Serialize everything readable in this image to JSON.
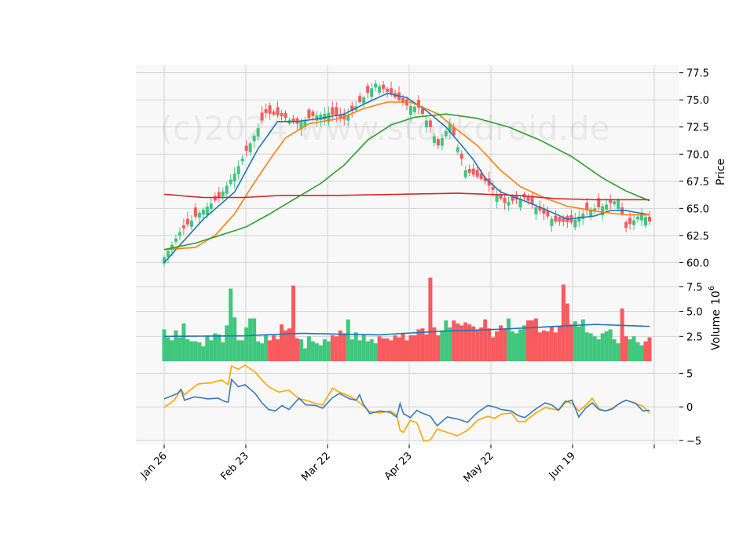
{
  "watermark": "(c)2024 www.stockdroid.de",
  "colors": {
    "panel_bg": "#f8f8f8",
    "grid": "#d4d4d4",
    "up": "#3fc77d",
    "down": "#f85a5e",
    "ma_fast": "#1f77b4",
    "ma_mid": "#ff7f0e",
    "ma_slow": "#2ca02c",
    "ma_long": "#d62728",
    "volume_ma": "#1f77b4",
    "macd": "#3b7ab8",
    "signal": "#ffa500"
  },
  "chart_data": {
    "type": "candlestick",
    "x_tick_labels": [
      "Jan 26",
      "Feb 23",
      "Mar 22",
      "Apr 23",
      "May 22",
      "Jun 19"
    ],
    "price_panel": {
      "ylabel": "Price",
      "ylim": [
        58.8,
        78.2
      ],
      "yticks": [
        60.0,
        62.5,
        65.0,
        67.5,
        70.0,
        72.5,
        75.0,
        77.5
      ],
      "ytick_labels": [
        "60.0",
        "62.5",
        "65.0",
        "67.5",
        "70.0",
        "72.5",
        "75.0",
        "77.5"
      ],
      "close_anchors": [
        [
          0,
          60.5
        ],
        [
          4,
          62.8
        ],
        [
          9,
          64.6
        ],
        [
          14,
          66.0
        ],
        [
          18,
          68.2
        ],
        [
          22,
          71.0
        ],
        [
          26,
          73.8
        ],
        [
          30,
          73.5
        ],
        [
          34,
          72.8
        ],
        [
          38,
          73.5
        ],
        [
          42,
          73.8
        ],
        [
          46,
          73.2
        ],
        [
          50,
          74.8
        ],
        [
          54,
          76.5
        ],
        [
          58,
          75.5
        ],
        [
          62,
          74.5
        ],
        [
          65,
          74.3
        ],
        [
          68,
          72.5
        ],
        [
          70,
          70.8
        ],
        [
          73,
          72.8
        ],
        [
          77,
          68.5
        ],
        [
          82,
          67.5
        ],
        [
          87,
          65.5
        ],
        [
          92,
          66.0
        ],
        [
          97,
          64.5
        ],
        [
          100,
          63.8
        ],
        [
          104,
          63.7
        ],
        [
          108,
          64.8
        ],
        [
          112,
          65.2
        ],
        [
          116,
          65.8
        ],
        [
          118,
          63.2
        ],
        [
          122,
          64.6
        ],
        [
          124,
          63.8
        ]
      ],
      "moving_averages": [
        {
          "key": "ma_fast",
          "values": [
            [
              0,
              60.0
            ],
            [
              10,
              64.0
            ],
            [
              18,
              66.5
            ],
            [
              24,
              70.5
            ],
            [
              29,
              73.0
            ],
            [
              34,
              73.0
            ],
            [
              40,
              73.3
            ],
            [
              46,
              73.7
            ],
            [
              51,
              74.6
            ],
            [
              57,
              75.6
            ],
            [
              62,
              75.2
            ],
            [
              67,
              74.0
            ],
            [
              72,
              72.5
            ],
            [
              76,
              70.8
            ],
            [
              79,
              69.5
            ],
            [
              82,
              67.8
            ],
            [
              86,
              66.5
            ],
            [
              92,
              65.7
            ],
            [
              98,
              64.8
            ],
            [
              103,
              64.0
            ],
            [
              110,
              64.3
            ],
            [
              114,
              64.8
            ],
            [
              118,
              64.8
            ],
            [
              124,
              64.4
            ]
          ]
        },
        {
          "key": "ma_mid",
          "values": [
            [
              0,
              61.2
            ],
            [
              8,
              61.4
            ],
            [
              13,
              62.5
            ],
            [
              18,
              64.5
            ],
            [
              22,
              66.8
            ],
            [
              27,
              69.5
            ],
            [
              31,
              71.5
            ],
            [
              37,
              72.8
            ],
            [
              45,
              73.3
            ],
            [
              51,
              74.2
            ],
            [
              57,
              74.8
            ],
            [
              63,
              74.8
            ],
            [
              70,
              73.7
            ],
            [
              75,
              72.2
            ],
            [
              80,
              70.8
            ],
            [
              86,
              68.5
            ],
            [
              91,
              67.0
            ],
            [
              97,
              66.0
            ],
            [
              103,
              65.2
            ],
            [
              111,
              64.7
            ],
            [
              118,
              64.4
            ],
            [
              124,
              64.4
            ]
          ]
        },
        {
          "key": "ma_slow",
          "values": [
            [
              0,
              61.2
            ],
            [
              8,
              61.8
            ],
            [
              15,
              62.6
            ],
            [
              21,
              63.3
            ],
            [
              27,
              64.5
            ],
            [
              33,
              65.8
            ],
            [
              40,
              67.3
            ],
            [
              46,
              69.0
            ],
            [
              52,
              71.3
            ],
            [
              58,
              72.7
            ],
            [
              64,
              73.4
            ],
            [
              72,
              73.7
            ],
            [
              80,
              73.3
            ],
            [
              88,
              72.5
            ],
            [
              96,
              71.3
            ],
            [
              104,
              69.8
            ],
            [
              112,
              67.8
            ],
            [
              118,
              66.6
            ],
            [
              124,
              65.7
            ]
          ]
        },
        {
          "key": "ma_long",
          "values": [
            [
              0,
              66.3
            ],
            [
              10,
              66.0
            ],
            [
              20,
              66.0
            ],
            [
              30,
              66.2
            ],
            [
              45,
              66.2
            ],
            [
              60,
              66.3
            ],
            [
              75,
              66.4
            ],
            [
              90,
              66.2
            ],
            [
              100,
              65.9
            ],
            [
              110,
              65.8
            ],
            [
              124,
              65.8
            ]
          ]
        }
      ]
    },
    "volume_panel": {
      "ylabel": "Volume",
      "unit": "10^6",
      "ylim": [
        0,
        8.6
      ],
      "yticks": [
        2.5,
        5.0,
        7.5
      ],
      "ytick_labels": [
        "2.5",
        "5.0",
        "7.5"
      ],
      "values_million": [
        3.2,
        2.4,
        2.1,
        3.1,
        2.4,
        3.8,
        2.2,
        2.0,
        2.0,
        1.9,
        1.5,
        2.6,
        2.1,
        2.8,
        2.7,
        1.9,
        3.6,
        7.3,
        4.4,
        2.1,
        2.1,
        3.4,
        4.3,
        4.3,
        2.0,
        1.8,
        2.6,
        2.1,
        2.6,
        2.2,
        3.7,
        3.1,
        3.3,
        7.6,
        2.3,
        2.2,
        1.3,
        2.5,
        2.0,
        1.8,
        1.6,
        2.2,
        2.0,
        2.6,
        2.5,
        3.1,
        2.8,
        4.2,
        2.2,
        2.9,
        2.1,
        2.7,
        2.0,
        2.2,
        1.8,
        2.5,
        2.3,
        2.3,
        2.1,
        2.6,
        2.4,
        2.8,
        2.1,
        2.6,
        2.6,
        3.2,
        3.3,
        2.7,
        8.4,
        3.4,
        2.6,
        3.1,
        4.1,
        3.4,
        4.1,
        3.8,
        3.6,
        3.9,
        3.7,
        3.5,
        3.2,
        3.4,
        4.2,
        3.3,
        2.4,
        3.0,
        3.6,
        3.3,
        4.3,
        3.0,
        2.8,
        3.2,
        3.6,
        4.1,
        4.1,
        4.3,
        2.9,
        3.1,
        3.0,
        3.5,
        2.9,
        3.5,
        7.7,
        5.8,
        3.7,
        4.0,
        3.5,
        4.2,
        2.9,
        2.8,
        2.5,
        2.2,
        2.8,
        3.0,
        3.2,
        2.2,
        1.8,
        5.3,
        2.5,
        2.2,
        2.5,
        1.9,
        1.6,
        2.0,
        2.4
      ],
      "ma_values": [
        [
          0,
          2.5
        ],
        [
          20,
          2.55
        ],
        [
          35,
          2.8
        ],
        [
          55,
          2.65
        ],
        [
          70,
          3.0
        ],
        [
          85,
          3.2
        ],
        [
          100,
          3.5
        ],
        [
          110,
          3.7
        ],
        [
          124,
          3.5
        ]
      ]
    },
    "indicator_panel": {
      "ylim": [
        -5.6,
        6.8
      ],
      "yticks": [
        -5,
        0,
        5
      ],
      "ytick_labels": [
        "−5",
        "0",
        "5"
      ],
      "macd_anchors": [
        [
          0,
          1.2
        ],
        [
          4,
          2.0
        ],
        [
          5,
          2.6
        ],
        [
          6,
          1.0
        ],
        [
          9,
          1.5
        ],
        [
          13,
          1.2
        ],
        [
          16,
          1.3
        ],
        [
          18,
          0.8
        ],
        [
          19,
          0.7
        ],
        [
          20,
          4.1
        ],
        [
          22,
          3.0
        ],
        [
          24,
          3.3
        ],
        [
          27,
          2.0
        ],
        [
          29,
          0.6
        ],
        [
          31,
          -0.4
        ],
        [
          33,
          -0.6
        ],
        [
          35,
          0.2
        ],
        [
          37,
          -0.4
        ],
        [
          40,
          1.3
        ],
        [
          42,
          0.3
        ],
        [
          45,
          0.2
        ],
        [
          47,
          -0.2
        ],
        [
          50,
          1.4
        ],
        [
          52,
          2.0
        ],
        [
          55,
          1.2
        ],
        [
          57,
          1.0
        ],
        [
          58,
          1.8
        ],
        [
          59,
          0.5
        ],
        [
          61,
          -1.0
        ],
        [
          64,
          -0.6
        ],
        [
          67,
          -0.8
        ],
        [
          69,
          -1.5
        ],
        [
          70,
          0.5
        ],
        [
          71,
          -1.0
        ],
        [
          73,
          -1.6
        ],
        [
          75,
          -0.5
        ],
        [
          76,
          -0.8
        ],
        [
          79,
          -1.4
        ],
        [
          81,
          -2.8
        ],
        [
          84,
          -1.5
        ],
        [
          87,
          -1.8
        ],
        [
          90,
          -2.3
        ],
        [
          93,
          -0.8
        ],
        [
          96,
          0.2
        ],
        [
          98,
          0.0
        ],
        [
          100,
          -0.4
        ],
        [
          103,
          -0.6
        ],
        [
          105,
          -1.3
        ],
        [
          107,
          -1.6
        ],
        [
          110,
          -0.4
        ],
        [
          113,
          0.6
        ],
        [
          115,
          0.3
        ],
        [
          117,
          -0.5
        ],
        [
          119,
          0.7
        ],
        [
          121,
          1.0
        ],
        [
          123,
          -1.5
        ],
        [
          125,
          -0.2
        ],
        [
          127,
          0.6
        ],
        [
          129,
          -0.4
        ],
        [
          131,
          -0.6
        ],
        [
          133,
          -0.3
        ],
        [
          135,
          0.5
        ],
        [
          137,
          1.0
        ],
        [
          140,
          0.5
        ],
        [
          142,
          -0.6
        ],
        [
          144,
          -0.5
        ]
      ],
      "signal_anchors": [
        [
          0,
          -0.1
        ],
        [
          3,
          1.0
        ],
        [
          5,
          2.6
        ],
        [
          6,
          1.8
        ],
        [
          10,
          3.4
        ],
        [
          14,
          3.6
        ],
        [
          17,
          4.0
        ],
        [
          19,
          3.3
        ],
        [
          20,
          6.1
        ],
        [
          22,
          5.6
        ],
        [
          24,
          6.2
        ],
        [
          27,
          5.2
        ],
        [
          29,
          4.0
        ],
        [
          31,
          3.0
        ],
        [
          34,
          2.2
        ],
        [
          37,
          2.5
        ],
        [
          40,
          1.2
        ],
        [
          42,
          1.0
        ],
        [
          45,
          0.5
        ],
        [
          47,
          0.3
        ],
        [
          50,
          2.8
        ],
        [
          52,
          2.2
        ],
        [
          55,
          1.6
        ],
        [
          57,
          1.0
        ],
        [
          59,
          0.2
        ],
        [
          61,
          -0.7
        ],
        [
          64,
          -0.9
        ],
        [
          67,
          -0.6
        ],
        [
          69,
          -1.2
        ],
        [
          70,
          -3.5
        ],
        [
          71,
          -3.8
        ],
        [
          73,
          -2.0
        ],
        [
          75,
          -2.4
        ],
        [
          77,
          -5.1
        ],
        [
          79,
          -4.9
        ],
        [
          81,
          -3.3
        ],
        [
          84,
          -3.8
        ],
        [
          87,
          -4.3
        ],
        [
          90,
          -3.5
        ],
        [
          93,
          -2.0
        ],
        [
          96,
          -1.4
        ],
        [
          98,
          -1.7
        ],
        [
          100,
          -1.1
        ],
        [
          103,
          -0.9
        ],
        [
          105,
          -2.2
        ],
        [
          107,
          -2.2
        ],
        [
          110,
          -1.0
        ],
        [
          113,
          -0.1
        ],
        [
          115,
          -0.3
        ],
        [
          117,
          -0.5
        ],
        [
          119,
          0.9
        ],
        [
          121,
          0.5
        ],
        [
          123,
          -0.6
        ],
        [
          125,
          0.2
        ],
        [
          127,
          1.3
        ],
        [
          129,
          -0.3
        ],
        [
          131,
          -0.6
        ],
        [
          133,
          -0.2
        ],
        [
          135,
          0.5
        ],
        [
          137,
          1.0
        ],
        [
          140,
          0.5
        ],
        [
          142,
          0.1
        ],
        [
          144,
          -0.9
        ]
      ]
    }
  }
}
